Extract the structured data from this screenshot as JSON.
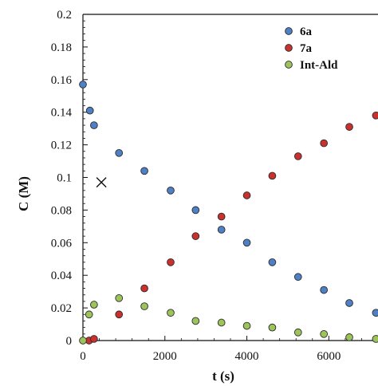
{
  "chart_data": {
    "type": "scatter",
    "title": "",
    "xlabel": "t (s)",
    "ylabel": "C (M)",
    "xlim": [
      0,
      7200
    ],
    "ylim": [
      0,
      0.2
    ],
    "xticks": [
      0,
      2000,
      4000,
      6000
    ],
    "xtick_labels": [
      "0",
      "2000",
      "4000",
      "6000"
    ],
    "yticks": [
      0,
      0.02,
      0.04,
      0.06,
      0.08,
      0.1,
      0.12,
      0.14,
      0.16,
      0.18,
      0.2
    ],
    "ytick_labels": [
      "0",
      "0.02",
      "0.04",
      "0.06",
      "0.08",
      "0.1",
      "0.12",
      "0.14",
      "0.16",
      "0.18",
      "0.2"
    ],
    "grid": false,
    "legend_position": "top-right",
    "series": [
      {
        "name": "6a",
        "color": "#4f7fc4",
        "points": [
          [
            0,
            0.157
          ],
          [
            170,
            0.141
          ],
          [
            270,
            0.132
          ],
          [
            880,
            0.115
          ],
          [
            1500,
            0.104
          ],
          [
            2140,
            0.092
          ],
          [
            2750,
            0.08
          ],
          [
            3380,
            0.068
          ],
          [
            4000,
            0.06
          ],
          [
            4620,
            0.048
          ],
          [
            5250,
            0.039
          ],
          [
            5880,
            0.031
          ],
          [
            6500,
            0.023
          ],
          [
            7150,
            0.017
          ]
        ]
      },
      {
        "name": "7a",
        "color": "#c8312e",
        "points": [
          [
            150,
            0.0
          ],
          [
            270,
            0.001
          ],
          [
            880,
            0.016
          ],
          [
            1500,
            0.032
          ],
          [
            2140,
            0.048
          ],
          [
            2750,
            0.064
          ],
          [
            3380,
            0.076
          ],
          [
            4000,
            0.089
          ],
          [
            4620,
            0.101
          ],
          [
            5250,
            0.113
          ],
          [
            5880,
            0.121
          ],
          [
            6500,
            0.131
          ],
          [
            7150,
            0.138
          ]
        ]
      },
      {
        "name": "Int-Ald",
        "color": "#9dc45a",
        "points": [
          [
            0,
            0.0
          ],
          [
            150,
            0.016
          ],
          [
            270,
            0.022
          ],
          [
            880,
            0.026
          ],
          [
            1500,
            0.021
          ],
          [
            2140,
            0.017
          ],
          [
            2750,
            0.012
          ],
          [
            3380,
            0.011
          ],
          [
            4000,
            0.009
          ],
          [
            4620,
            0.008
          ],
          [
            5250,
            0.005
          ],
          [
            5880,
            0.004
          ],
          [
            6500,
            0.002
          ],
          [
            7150,
            0.001
          ]
        ]
      }
    ],
    "annotation_marker": {
      "symbol": "×",
      "x": 450,
      "y": 0.097
    }
  }
}
